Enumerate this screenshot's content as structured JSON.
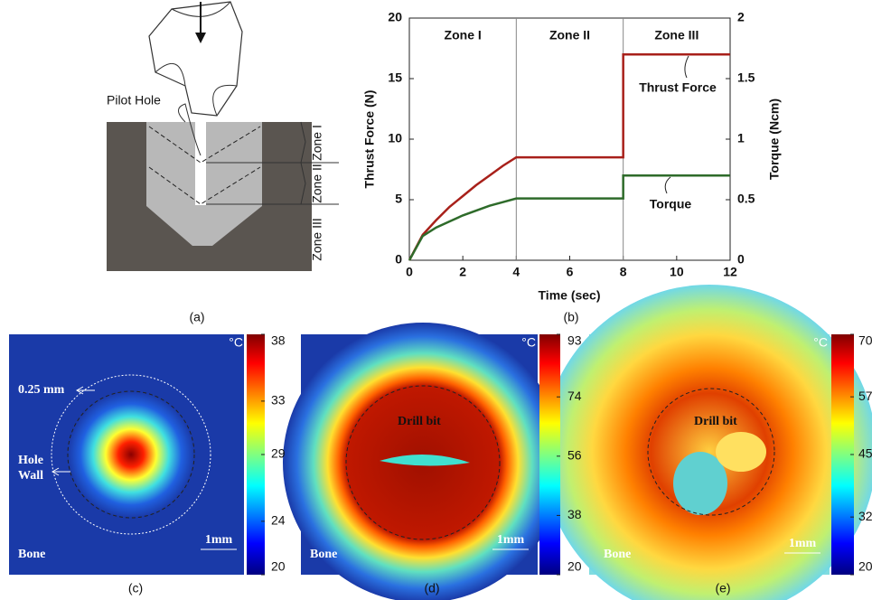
{
  "diagram": {
    "pilot_label": "Pilot Hole",
    "zones": [
      "Zone I",
      "Zone II",
      "Zone III"
    ],
    "caption": "(a)"
  },
  "chart_data": {
    "type": "line",
    "caption": "(b)",
    "x_label": "Time (sec)",
    "y_label": "Thrust Force (N)",
    "y2_label": "Torque (Ncm)",
    "x": [
      0,
      0.5,
      1,
      1.5,
      2,
      2.5,
      3,
      3.5,
      4,
      8,
      8,
      12
    ],
    "series": [
      {
        "name": "Thrust Force",
        "color": "#a8201a",
        "values": [
          0,
          2.1,
          3.3,
          4.4,
          5.3,
          6.2,
          7.0,
          7.8,
          8.5,
          8.5,
          17,
          17
        ]
      },
      {
        "name": "Torque",
        "color": "#2e6b2a",
        "axis": "y2",
        "values": [
          0,
          0.2,
          0.27,
          0.32,
          0.37,
          0.41,
          0.45,
          0.48,
          0.51,
          0.51,
          0.7,
          0.7
        ]
      }
    ],
    "xlim": [
      0,
      12
    ],
    "xticks": [
      0,
      2,
      4,
      6,
      8,
      10,
      12
    ],
    "ylim": [
      0,
      20
    ],
    "yticks": [
      0,
      5,
      10,
      15,
      20
    ],
    "y2lim": [
      0,
      2
    ],
    "y2ticks": [
      0,
      0.5,
      1,
      1.5,
      2
    ],
    "zones": [
      "Zone I",
      "Zone II",
      "Zone III"
    ],
    "zone_bounds": [
      4,
      8
    ]
  },
  "thermal_images": [
    {
      "caption": "(c)",
      "unit": "°C",
      "ticks": [
        38,
        33,
        29,
        24,
        20
      ],
      "scale_bar": "1mm",
      "tissue_label": "Bone",
      "ring_label": "0.25 mm",
      "wall_label": [
        "Hole",
        "Wall"
      ]
    },
    {
      "caption": "(d)",
      "unit": "°C",
      "ticks": [
        93,
        74,
        56,
        38,
        20
      ],
      "scale_bar": "1mm",
      "tissue_label": "Bone",
      "center_label": "Drill bit"
    },
    {
      "caption": "(e)",
      "unit": "°C",
      "ticks": [
        70,
        57,
        45,
        32,
        20
      ],
      "scale_bar": "1mm",
      "tissue_label": "Bone",
      "center_label": "Drill bit"
    }
  ]
}
